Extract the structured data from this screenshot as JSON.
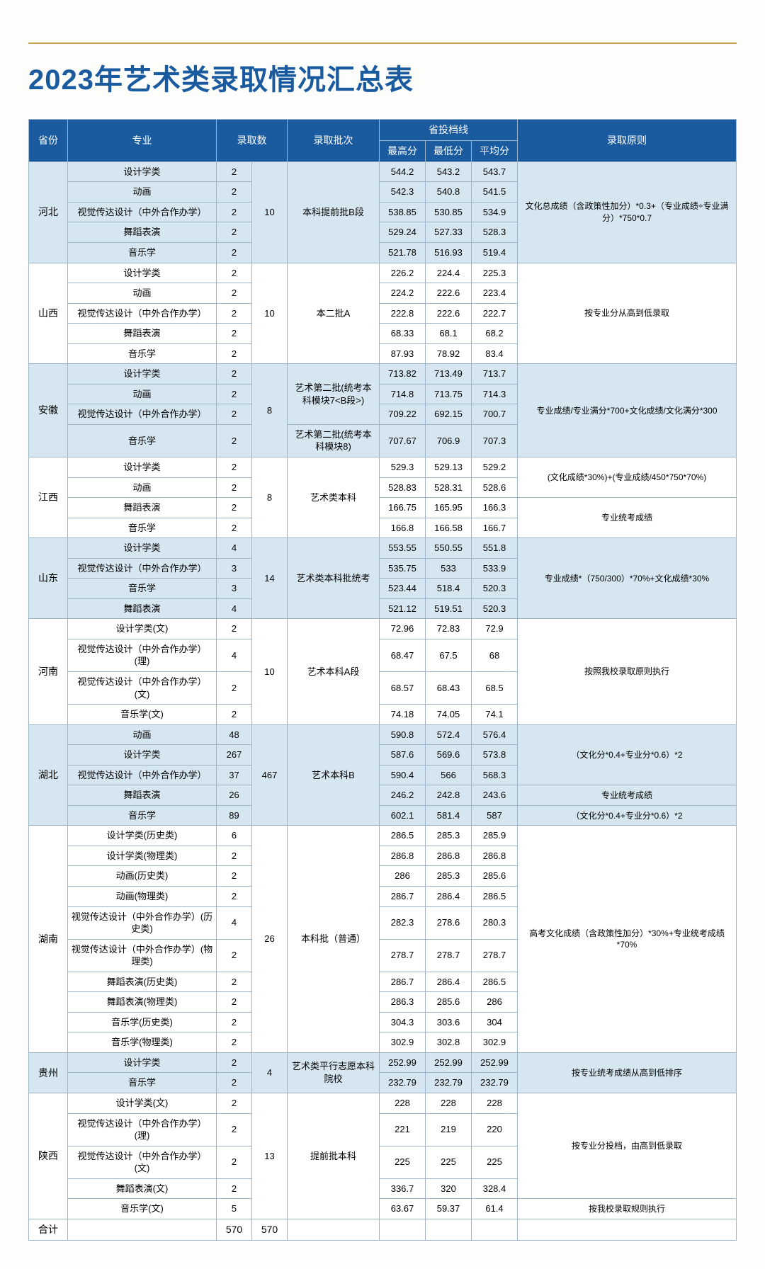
{
  "title": "2023年艺术类录取情况汇总表",
  "headers": {
    "province": "省份",
    "major": "专业",
    "admit_count": "录取数",
    "batch": "录取批次",
    "score_group": "省投档线",
    "high": "最高分",
    "low": "最低分",
    "avg": "平均分",
    "rule": "录取原则"
  },
  "total_label": "合计",
  "total_count1": "570",
  "total_count2": "570",
  "groups": [
    {
      "province": "河北",
      "shade": true,
      "sum": 10,
      "batch": "本科提前批B段",
      "rule_spans": [
        {
          "text": "文化总成绩（含政策性加分）*0.3+（专业成绩÷专业满分）*750*0.7",
          "rows": 5
        }
      ],
      "rows": [
        {
          "major": "设计学类",
          "n": 2,
          "h": "544.2",
          "l": "543.2",
          "a": "543.7"
        },
        {
          "major": "动画",
          "n": 2,
          "h": "542.3",
          "l": "540.8",
          "a": "541.5"
        },
        {
          "major": "视觉传达设计（中外合作办学）",
          "n": 2,
          "h": "538.85",
          "l": "530.85",
          "a": "534.9"
        },
        {
          "major": "舞蹈表演",
          "n": 2,
          "h": "529.24",
          "l": "527.33",
          "a": "528.3"
        },
        {
          "major": "音乐学",
          "n": 2,
          "h": "521.78",
          "l": "516.93",
          "a": "519.4"
        }
      ]
    },
    {
      "province": "山西",
      "shade": false,
      "sum": 10,
      "batch": "本二批A",
      "rule_spans": [
        {
          "text": "按专业分从高到低录取",
          "rows": 5
        }
      ],
      "rows": [
        {
          "major": "设计学类",
          "n": 2,
          "h": "226.2",
          "l": "224.4",
          "a": "225.3"
        },
        {
          "major": "动画",
          "n": 2,
          "h": "224.2",
          "l": "222.6",
          "a": "223.4"
        },
        {
          "major": "视觉传达设计（中外合作办学）",
          "n": 2,
          "h": "222.8",
          "l": "222.6",
          "a": "222.7"
        },
        {
          "major": "舞蹈表演",
          "n": 2,
          "h": "68.33",
          "l": "68.1",
          "a": "68.2"
        },
        {
          "major": "音乐学",
          "n": 2,
          "h": "87.93",
          "l": "78.92",
          "a": "83.4"
        }
      ]
    },
    {
      "province": "安徽",
      "shade": true,
      "sum": 8,
      "batch_spans": [
        {
          "text": "艺术第二批(统考本科模块7<B段>)",
          "rows": 3
        },
        {
          "text": "艺术第二批(统考本科模块8)",
          "rows": 1
        }
      ],
      "rule_spans": [
        {
          "text": "专业成绩/专业满分*700+文化成绩/文化满分*300",
          "rows": 4
        }
      ],
      "rows": [
        {
          "major": "设计学类",
          "n": 2,
          "h": "713.82",
          "l": "713.49",
          "a": "713.7"
        },
        {
          "major": "动画",
          "n": 2,
          "h": "714.8",
          "l": "713.75",
          "a": "714.3"
        },
        {
          "major": "视觉传达设计（中外合作办学）",
          "n": 2,
          "h": "709.22",
          "l": "692.15",
          "a": "700.7"
        },
        {
          "major": "音乐学",
          "n": 2,
          "h": "707.67",
          "l": "706.9",
          "a": "707.3"
        }
      ]
    },
    {
      "province": "江西",
      "shade": false,
      "sum": 8,
      "batch": "艺术类本科",
      "rule_spans": [
        {
          "text": "(文化成绩*30%)+(专业成绩/450*750*70%)",
          "rows": 2
        },
        {
          "text": "专业统考成绩",
          "rows": 2
        }
      ],
      "rows": [
        {
          "major": "设计学类",
          "n": 2,
          "h": "529.3",
          "l": "529.13",
          "a": "529.2"
        },
        {
          "major": "动画",
          "n": 2,
          "h": "528.83",
          "l": "528.31",
          "a": "528.6"
        },
        {
          "major": "舞蹈表演",
          "n": 2,
          "h": "166.75",
          "l": "165.95",
          "a": "166.3"
        },
        {
          "major": "音乐学",
          "n": 2,
          "h": "166.8",
          "l": "166.58",
          "a": "166.7"
        }
      ]
    },
    {
      "province": "山东",
      "shade": true,
      "sum": 14,
      "batch": "艺术类本科批统考",
      "rule_spans": [
        {
          "text": "专业成绩*（750/300）*70%+文化成绩*30%",
          "rows": 4
        }
      ],
      "rows": [
        {
          "major": "设计学类",
          "n": 4,
          "h": "553.55",
          "l": "550.55",
          "a": "551.8"
        },
        {
          "major": "视觉传达设计（中外合作办学）",
          "n": 3,
          "h": "535.75",
          "l": "533",
          "a": "533.9"
        },
        {
          "major": "音乐学",
          "n": 3,
          "h": "523.44",
          "l": "518.4",
          "a": "520.3"
        },
        {
          "major": "舞蹈表演",
          "n": 4,
          "h": "521.12",
          "l": "519.51",
          "a": "520.3"
        }
      ]
    },
    {
      "province": "河南",
      "shade": false,
      "sum": 10,
      "batch": "艺术本科A段",
      "rule_spans": [
        {
          "text": "按照我校录取原则执行",
          "rows": 4
        }
      ],
      "rows": [
        {
          "major": "设计学类(文)",
          "n": 2,
          "h": "72.96",
          "l": "72.83",
          "a": "72.9"
        },
        {
          "major": "视觉传达设计（中外合作办学）(理)",
          "n": 4,
          "h": "68.47",
          "l": "67.5",
          "a": "68"
        },
        {
          "major": "视觉传达设计（中外合作办学）(文)",
          "n": 2,
          "h": "68.57",
          "l": "68.43",
          "a": "68.5"
        },
        {
          "major": "音乐学(文)",
          "n": 2,
          "h": "74.18",
          "l": "74.05",
          "a": "74.1"
        }
      ]
    },
    {
      "province": "湖北",
      "shade": true,
      "sum": 467,
      "batch": "艺术本科B",
      "rule_spans": [
        {
          "text": "（文化分*0.4+专业分*0.6）*2",
          "rows": 3
        },
        {
          "text": "专业统考成绩",
          "rows": 1
        },
        {
          "text": "（文化分*0.4+专业分*0.6）*2",
          "rows": 1
        }
      ],
      "rows": [
        {
          "major": "动画",
          "n": 48,
          "h": "590.8",
          "l": "572.4",
          "a": "576.4"
        },
        {
          "major": "设计学类",
          "n": 267,
          "h": "587.6",
          "l": "569.6",
          "a": "573.8"
        },
        {
          "major": "视觉传达设计（中外合作办学）",
          "n": 37,
          "h": "590.4",
          "l": "566",
          "a": "568.3"
        },
        {
          "major": "舞蹈表演",
          "n": 26,
          "h": "246.2",
          "l": "242.8",
          "a": "243.6"
        },
        {
          "major": "音乐学",
          "n": 89,
          "h": "602.1",
          "l": "581.4",
          "a": "587"
        }
      ]
    },
    {
      "province": "湖南",
      "shade": false,
      "sum": 26,
      "batch": "本科批（普通）",
      "rule_spans": [
        {
          "text": "高考文化成绩（含政策性加分）*30%+专业统考成绩*70%",
          "rows": 10
        }
      ],
      "rows": [
        {
          "major": "设计学类(历史类)",
          "n": 6,
          "h": "286.5",
          "l": "285.3",
          "a": "285.9"
        },
        {
          "major": "设计学类(物理类)",
          "n": 2,
          "h": "286.8",
          "l": "286.8",
          "a": "286.8"
        },
        {
          "major": "动画(历史类)",
          "n": 2,
          "h": "286",
          "l": "285.3",
          "a": "285.6"
        },
        {
          "major": "动画(物理类)",
          "n": 2,
          "h": "286.7",
          "l": "286.4",
          "a": "286.5"
        },
        {
          "major": "视觉传达设计（中外合作办学）(历史类)",
          "n": 4,
          "h": "282.3",
          "l": "278.6",
          "a": "280.3"
        },
        {
          "major": "视觉传达设计（中外合作办学）(物理类)",
          "n": 2,
          "h": "278.7",
          "l": "278.7",
          "a": "278.7"
        },
        {
          "major": "舞蹈表演(历史类)",
          "n": 2,
          "h": "286.7",
          "l": "286.4",
          "a": "286.5"
        },
        {
          "major": "舞蹈表演(物理类)",
          "n": 2,
          "h": "286.3",
          "l": "285.6",
          "a": "286"
        },
        {
          "major": "音乐学(历史类)",
          "n": 2,
          "h": "304.3",
          "l": "303.6",
          "a": "304"
        },
        {
          "major": "音乐学(物理类)",
          "n": 2,
          "h": "302.9",
          "l": "302.8",
          "a": "302.9"
        }
      ]
    },
    {
      "province": "贵州",
      "shade": true,
      "sum": 4,
      "batch": "艺术类平行志愿本科院校",
      "rule_spans": [
        {
          "text": "按专业统考成绩从高到低排序",
          "rows": 2
        }
      ],
      "rows": [
        {
          "major": "设计学类",
          "n": 2,
          "h": "252.99",
          "l": "252.99",
          "a": "252.99"
        },
        {
          "major": "音乐学",
          "n": 2,
          "h": "232.79",
          "l": "232.79",
          "a": "232.79"
        }
      ]
    },
    {
      "province": "陕西",
      "shade": false,
      "sum": 13,
      "batch": "提前批本科",
      "rule_spans": [
        {
          "text": "按专业分投档，由高到低录取",
          "rows": 4
        },
        {
          "text": "按我校录取规则执行",
          "rows": 1
        }
      ],
      "rows": [
        {
          "major": "设计学类(文)",
          "n": 2,
          "h": "228",
          "l": "228",
          "a": "228"
        },
        {
          "major": "视觉传达设计（中外合作办学）(理)",
          "n": 2,
          "h": "221",
          "l": "219",
          "a": "220"
        },
        {
          "major": "视觉传达设计（中外合作办学）(文)",
          "n": 2,
          "h": "225",
          "l": "225",
          "a": "225"
        },
        {
          "major": "舞蹈表演(文)",
          "n": 2,
          "h": "336.7",
          "l": "320",
          "a": "328.4"
        },
        {
          "major": "音乐学(文)",
          "n": 5,
          "h": "63.67",
          "l": "59.37",
          "a": "61.4"
        }
      ]
    }
  ]
}
